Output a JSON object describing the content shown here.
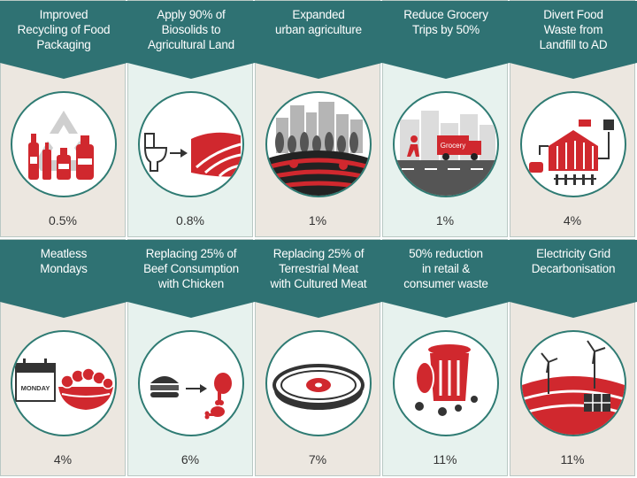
{
  "colors": {
    "teal": "#2f7273",
    "red": "#d0282e",
    "grey": "#8a8a8a",
    "beige": "#ece7e0",
    "mint": "#e7f2ee"
  },
  "tiles": [
    {
      "title": "Improved\nRecycling of Food\nPackaging",
      "percent": "0.5%",
      "icon": "recycling-bottles-icon"
    },
    {
      "title": "Apply 90% of\nBiosolids to\nAgricultural Land",
      "percent": "0.8%",
      "icon": "toilet-to-field-icon"
    },
    {
      "title": "Expanded\nurban agriculture",
      "percent": "1%",
      "icon": "urban-farming-icon"
    },
    {
      "title": "Reduce Grocery\nTrips by 50%",
      "percent": "1%",
      "icon": "grocery-truck-icon",
      "truck_label": "Grocery"
    },
    {
      "title": "Divert Food\nWaste from\nLandfill to AD",
      "percent": "4%",
      "icon": "anaerobic-digester-icon"
    },
    {
      "title": "Meatless\nMondays",
      "percent": "4%",
      "icon": "salad-calendar-icon",
      "calendar_label": "MONDAY"
    },
    {
      "title": "Replacing 25% of\nBeef Consumption\nwith Chicken",
      "percent": "6%",
      "icon": "burger-to-chicken-icon"
    },
    {
      "title": "Replacing 25% of\nTerrestrial Meat\nwith Cultured Meat",
      "percent": "7%",
      "icon": "petri-dish-icon"
    },
    {
      "title": "50% reduction\nin retail &\nconsumer waste",
      "percent": "11%",
      "icon": "waste-bin-icon"
    },
    {
      "title": "Electricity Grid\nDecarbonisation",
      "percent": "11%",
      "icon": "wind-solar-icon"
    }
  ]
}
